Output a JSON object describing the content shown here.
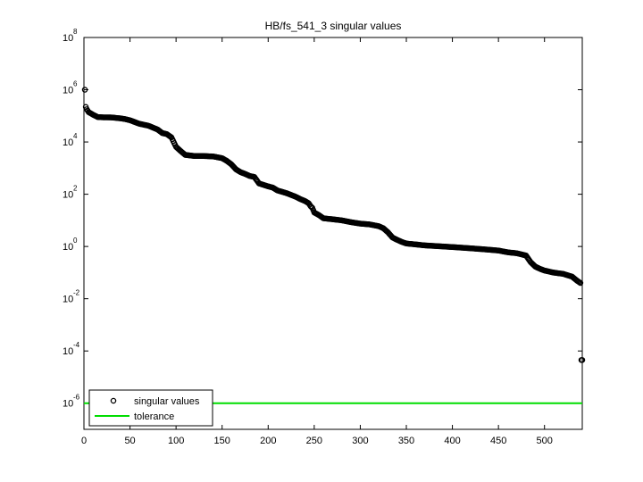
{
  "chart_data": {
    "type": "scatter",
    "title": "HB/fs_541_3 singular values",
    "xlabel": "",
    "ylabel": "",
    "x_scale": "linear",
    "y_scale": "log",
    "xlim": [
      0,
      541
    ],
    "ylim_exponent": [
      -7,
      8
    ],
    "x_ticks": [
      0,
      50,
      100,
      150,
      200,
      250,
      300,
      350,
      400,
      450,
      500
    ],
    "x_tick_labels": [
      "0",
      "50",
      "100",
      "150",
      "200",
      "250",
      "300",
      "350",
      "400",
      "450",
      "500"
    ],
    "y_tick_exponents": [
      -6,
      -4,
      -2,
      0,
      2,
      4,
      6,
      8
    ],
    "y_tick_base": "10",
    "y_tick_exp_labels": [
      "-6",
      "-4",
      "-2",
      "0",
      "2",
      "4",
      "6",
      "8"
    ],
    "series": [
      {
        "name": "singular values",
        "marker": "circle",
        "color": "#000000",
        "profile_index": [
          1,
          2,
          3,
          5,
          10,
          15,
          20,
          30,
          40,
          45,
          50,
          60,
          70,
          80,
          85,
          90,
          95,
          100,
          105,
          110,
          120,
          130,
          140,
          145,
          150,
          155,
          160,
          165,
          170,
          175,
          180,
          185,
          190,
          200,
          205,
          210,
          220,
          230,
          235,
          240,
          244,
          246,
          248,
          250,
          255,
          260,
          270,
          280,
          290,
          300,
          310,
          320,
          325,
          330,
          335,
          340,
          345,
          350,
          360,
          370,
          380,
          390,
          400,
          410,
          420,
          430,
          440,
          450,
          460,
          470,
          480,
          485,
          490,
          495,
          500,
          510,
          520,
          530,
          535,
          539,
          540
        ],
        "profile_value": [
          1000000,
          220000,
          180000,
          140000,
          110000,
          90000,
          88000,
          87000,
          80000,
          75000,
          68000,
          50000,
          42000,
          30000,
          22000,
          20000,
          15000,
          6500,
          4500,
          3200,
          2900,
          2900,
          2800,
          2600,
          2400,
          1900,
          1400,
          900,
          700,
          600,
          500,
          460,
          260,
          200,
          180,
          140,
          110,
          80,
          65,
          55,
          45,
          35,
          30,
          20,
          16,
          12,
          11,
          10,
          8.5,
          7.5,
          7,
          6,
          5,
          3.5,
          2.2,
          1.8,
          1.5,
          1.3,
          1.2,
          1.1,
          1.05,
          1.0,
          0.95,
          0.9,
          0.85,
          0.8,
          0.75,
          0.7,
          0.6,
          0.55,
          0.45,
          0.25,
          0.17,
          0.14,
          0.12,
          0.1,
          0.09,
          0.07,
          0.05,
          0.04,
          4.5e-05
        ],
        "point_count": 541
      },
      {
        "name": "tolerance",
        "marker": "line",
        "color": "#00dd00",
        "value": 1e-06
      }
    ],
    "legend": {
      "position": "bottom-left",
      "entries": [
        "singular values",
        "tolerance"
      ]
    },
    "grid": false
  }
}
